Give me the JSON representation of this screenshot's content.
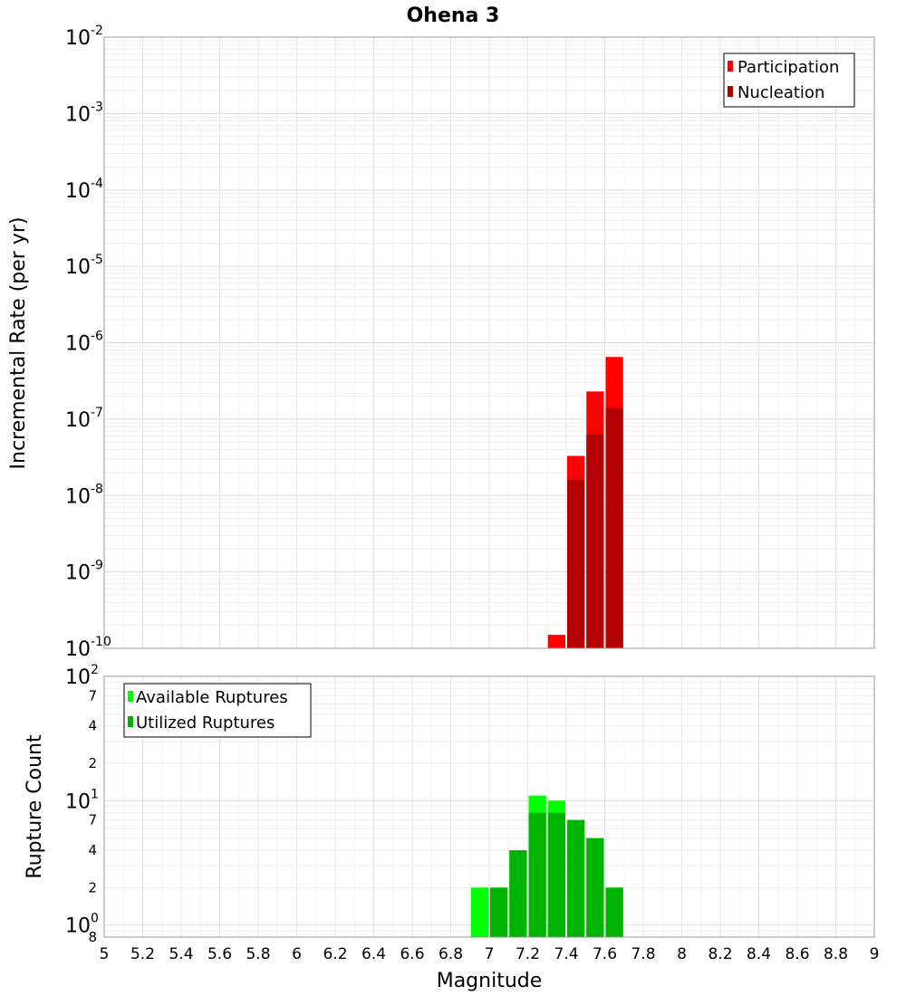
{
  "chart_data": [
    {
      "type": "bar",
      "title": "Ohena 3",
      "xlabel": "",
      "ylabel": "Incremental Rate (per yr)",
      "yscale": "log",
      "ylim": [
        1e-10,
        0.01
      ],
      "xlim": [
        5,
        9
      ],
      "y_tick_labels": [
        {
          "value": 1e-10,
          "base": "10",
          "exp": "-10"
        },
        {
          "value": 1e-09,
          "base": "10",
          "exp": "-9"
        },
        {
          "value": 1e-08,
          "base": "10",
          "exp": "-8"
        },
        {
          "value": 1e-07,
          "base": "10",
          "exp": "-7"
        },
        {
          "value": 1e-06,
          "base": "10",
          "exp": "-6"
        },
        {
          "value": 1e-05,
          "base": "10",
          "exp": "-5"
        },
        {
          "value": 0.0001,
          "base": "10",
          "exp": "-4"
        },
        {
          "value": 0.001,
          "base": "10",
          "exp": "-3"
        },
        {
          "value": 0.01,
          "base": "10",
          "exp": "-2"
        }
      ],
      "grid": true,
      "legend_position": "top-right",
      "x": [
        7.35,
        7.45,
        7.55,
        7.65
      ],
      "series": [
        {
          "name": "Participation",
          "color": "#ff0000",
          "values": [
            1.5e-10,
            3.3e-08,
            2.3e-07,
            6.5e-07
          ]
        },
        {
          "name": "Nucleation",
          "color": "#b30000",
          "values": [
            null,
            1.6e-08,
            6.3e-08,
            1.4e-07
          ]
        }
      ]
    },
    {
      "type": "bar",
      "title": "",
      "xlabel": "Magnitude",
      "ylabel": "Rupture Count",
      "yscale": "log",
      "ylim": [
        0.8,
        100
      ],
      "xlim": [
        5,
        9
      ],
      "x_ticks": [
        "5",
        "5.2",
        "5.4",
        "5.6",
        "5.8",
        "6",
        "6.2",
        "6.4",
        "6.6",
        "6.8",
        "7",
        "7.2",
        "7.4",
        "7.6",
        "7.8",
        "8",
        "8.2",
        "8.4",
        "8.6",
        "8.8",
        "9"
      ],
      "y_tick_labels": [
        {
          "value": 1,
          "base": "10",
          "exp": "0"
        },
        {
          "value": 10,
          "base": "10",
          "exp": "1"
        },
        {
          "value": 100,
          "base": "10",
          "exp": "2"
        }
      ],
      "y_minor_labels": [
        {
          "value": 0.8,
          "label": "8"
        },
        {
          "value": 2,
          "label": "2"
        },
        {
          "value": 4,
          "label": "4"
        },
        {
          "value": 7,
          "label": "7"
        },
        {
          "value": 20,
          "label": "2"
        },
        {
          "value": 40,
          "label": "4"
        },
        {
          "value": 70,
          "label": "7"
        }
      ],
      "grid": true,
      "legend_position": "top-left",
      "x": [
        6.95,
        7.05,
        7.15,
        7.25,
        7.35,
        7.45,
        7.55,
        7.65
      ],
      "series": [
        {
          "name": "Available Ruptures",
          "color": "#00ff00",
          "values": [
            2,
            2,
            4,
            11,
            10,
            7,
            5,
            2
          ]
        },
        {
          "name": "Utilized Ruptures",
          "color": "#00b300",
          "values": [
            null,
            2,
            4,
            8,
            8,
            7,
            5,
            2
          ]
        }
      ]
    }
  ]
}
